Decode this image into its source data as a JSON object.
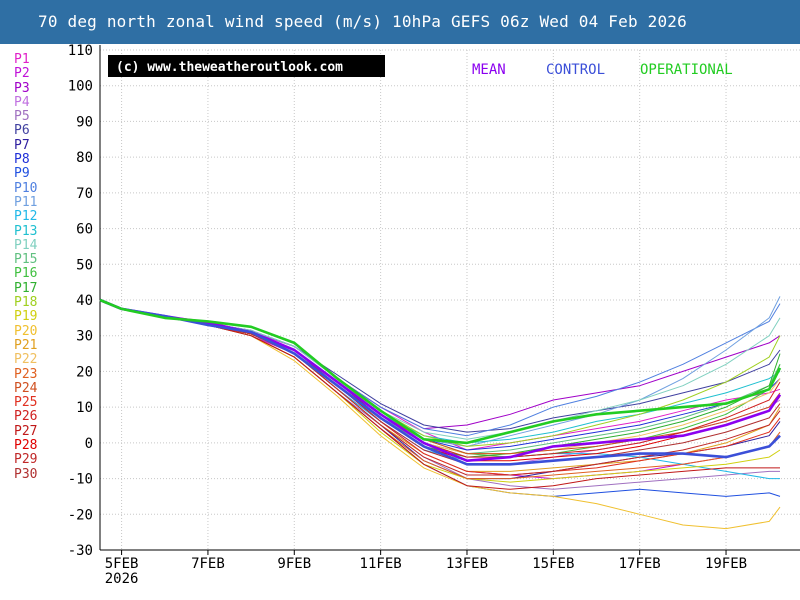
{
  "title": "70 deg north zonal wind speed (m/s) 10hPa GEFS 06z Wed 04 Feb 2026",
  "copyright": "(c) www.theweatheroutlook.com",
  "colors": {
    "title_bg": "#2f6fa4",
    "mean": "#8b00f0",
    "control": "#3b4fd8",
    "operational": "#22cc22"
  },
  "members": [
    {
      "label": "P1",
      "color": "#e020c8"
    },
    {
      "label": "P2",
      "color": "#c010d8"
    },
    {
      "label": "P3",
      "color": "#a000c8"
    },
    {
      "label": "P4",
      "color": "#c070e0"
    },
    {
      "label": "P5",
      "color": "#a070c0"
    },
    {
      "label": "P6",
      "color": "#4040a0"
    },
    {
      "label": "P7",
      "color": "#3020a0"
    },
    {
      "label": "P8",
      "color": "#2030d8"
    },
    {
      "label": "P9",
      "color": "#2050e0"
    },
    {
      "label": "P10",
      "color": "#5080e0"
    },
    {
      "label": "P11",
      "color": "#70a0e0"
    },
    {
      "label": "P12",
      "color": "#20b8e8"
    },
    {
      "label": "P13",
      "color": "#20c0d0"
    },
    {
      "label": "P14",
      "color": "#80d0c0"
    },
    {
      "label": "P15",
      "color": "#60c080"
    },
    {
      "label": "P16",
      "color": "#40c040"
    },
    {
      "label": "P17",
      "color": "#30b030"
    },
    {
      "label": "P18",
      "color": "#a0d020"
    },
    {
      "label": "P19",
      "color": "#d0d010"
    },
    {
      "label": "P20",
      "color": "#f0c030"
    },
    {
      "label": "P21",
      "color": "#e0a020"
    },
    {
      "label": "P22",
      "color": "#f0c060"
    },
    {
      "label": "P23",
      "color": "#e06020"
    },
    {
      "label": "P24",
      "color": "#d05020"
    },
    {
      "label": "P25",
      "color": "#e03020"
    },
    {
      "label": "P26",
      "color": "#d02020"
    },
    {
      "label": "P27",
      "color": "#c01818"
    },
    {
      "label": "P28",
      "color": "#e00000"
    },
    {
      "label": "P29",
      "color": "#c02828"
    },
    {
      "label": "P30",
      "color": "#b03030"
    }
  ],
  "chart_data": {
    "type": "line",
    "title": "70 deg north zonal wind speed (m/s) 10hPa GEFS 06z Wed 04 Feb 2026",
    "ylabel": "",
    "xlabel": "",
    "ylim": [
      -30,
      110
    ],
    "y_ticks": [
      110,
      100,
      90,
      80,
      70,
      60,
      50,
      40,
      30,
      20,
      10,
      0,
      -10,
      -20,
      -30
    ],
    "xlim": [
      "2026-02-04T12",
      "2026-02-20T06"
    ],
    "x_ticks": [
      {
        "date": "2026-02-05",
        "label": "5FEB",
        "sublabel": "2026"
      },
      {
        "date": "2026-02-07",
        "label": "7FEB",
        "sublabel": ""
      },
      {
        "date": "2026-02-09",
        "label": "9FEB",
        "sublabel": ""
      },
      {
        "date": "2026-02-11",
        "label": "11FEB",
        "sublabel": ""
      },
      {
        "date": "2026-02-13",
        "label": "13FEB",
        "sublabel": ""
      },
      {
        "date": "2026-02-15",
        "label": "15FEB",
        "sublabel": ""
      },
      {
        "date": "2026-02-17",
        "label": "17FEB",
        "sublabel": ""
      },
      {
        "date": "2026-02-19",
        "label": "19FEB",
        "sublabel": ""
      }
    ],
    "grid": true,
    "legend": {
      "placement": "top-right",
      "entries": [
        "MEAN",
        "CONTROL",
        "OPERATIONAL"
      ]
    },
    "x_dates": [
      "2026-02-04T12",
      "2026-02-05T00",
      "2026-02-06T00",
      "2026-02-07T00",
      "2026-02-08T00",
      "2026-02-09T00",
      "2026-02-10T00",
      "2026-02-11T00",
      "2026-02-12T00",
      "2026-02-13T00",
      "2026-02-14T00",
      "2026-02-15T00",
      "2026-02-16T00",
      "2026-02-17T00",
      "2026-02-18T00",
      "2026-02-19T00",
      "2026-02-20T00",
      "2026-02-20T06"
    ],
    "series": [
      {
        "name": "MEAN",
        "values": [
          40,
          37.5,
          35.5,
          33.5,
          31,
          26,
          17,
          8,
          0,
          -5,
          -4,
          -1,
          0,
          1,
          2,
          5,
          9,
          13.5
        ]
      },
      {
        "name": "CONTROL",
        "values": [
          40,
          37.5,
          35.5,
          33,
          31,
          25,
          16,
          7,
          -1,
          -6,
          -6,
          -5,
          -4,
          -3,
          -3,
          -4,
          -1,
          2
        ]
      },
      {
        "name": "OPERATIONAL",
        "values": [
          40,
          37.5,
          35,
          34,
          32.5,
          28,
          18,
          9,
          1,
          0,
          3,
          6,
          8,
          9,
          10,
          11,
          15,
          21
        ]
      },
      {
        "name": "P1",
        "values": [
          40,
          37.5,
          35.5,
          34,
          31,
          27,
          18,
          10,
          3,
          -2,
          0,
          2,
          4,
          6,
          9,
          12,
          14,
          15
        ]
      },
      {
        "name": "P2",
        "values": [
          40,
          37.5,
          35.5,
          33,
          30,
          25,
          15,
          6,
          -3,
          -8,
          -9,
          -10,
          -9,
          -8,
          -6,
          -4,
          -1,
          2
        ]
      },
      {
        "name": "P3",
        "values": [
          40,
          37.5,
          35.5,
          33.5,
          31.5,
          27,
          18,
          10,
          4,
          5,
          8,
          12,
          14,
          16,
          20,
          24,
          28,
          30
        ]
      },
      {
        "name": "P4",
        "values": [
          40,
          37.5,
          35,
          33.5,
          31,
          26,
          16,
          6,
          -2,
          -6,
          -6,
          -4,
          -2,
          0,
          3,
          6,
          10,
          12
        ]
      },
      {
        "name": "P5",
        "values": [
          40,
          37.5,
          35.5,
          33,
          30,
          24,
          14,
          5,
          -4,
          -10,
          -12,
          -13,
          -12,
          -11,
          -10,
          -9,
          -8,
          -8
        ]
      },
      {
        "name": "P6",
        "values": [
          40,
          37.5,
          35,
          33.5,
          31.5,
          27,
          19,
          11,
          5,
          3,
          4,
          7,
          9,
          11,
          14,
          17,
          22,
          26
        ]
      },
      {
        "name": "P7",
        "values": [
          40,
          37.5,
          35.5,
          33,
          30.5,
          25,
          15,
          5,
          -5,
          -10,
          -10,
          -8,
          -6,
          -4,
          -3,
          -1,
          2,
          6
        ]
      },
      {
        "name": "P8",
        "values": [
          40,
          37.5,
          35.5,
          33.5,
          31,
          26,
          17,
          8,
          1,
          -2,
          -1,
          1,
          3,
          5,
          8,
          11,
          15,
          18
        ]
      },
      {
        "name": "P9",
        "values": [
          40,
          37.5,
          35.5,
          33,
          30,
          24,
          14,
          4,
          -6,
          -12,
          -14,
          -15,
          -14,
          -13,
          -14,
          -15,
          -14,
          -15
        ]
      },
      {
        "name": "P10",
        "values": [
          40,
          37.5,
          35.5,
          33.5,
          31.5,
          27,
          18,
          10,
          4,
          2,
          5,
          10,
          13,
          17,
          22,
          28,
          34,
          39
        ]
      },
      {
        "name": "P11",
        "values": [
          40,
          37.5,
          35,
          33.5,
          31,
          26,
          16,
          7,
          1,
          -1,
          2,
          5,
          8,
          12,
          18,
          26,
          35,
          41
        ]
      },
      {
        "name": "P12",
        "values": [
          40,
          37.5,
          35.5,
          33,
          30.5,
          25,
          15,
          6,
          -2,
          -5,
          -4,
          -3,
          -3,
          -4,
          -6,
          -8,
          -10,
          -10
        ]
      },
      {
        "name": "P13",
        "values": [
          40,
          37.5,
          35.5,
          33.5,
          31,
          26,
          17,
          8,
          2,
          0,
          1,
          3,
          6,
          8,
          11,
          14,
          18,
          20
        ]
      },
      {
        "name": "P14",
        "values": [
          40,
          37.5,
          35.5,
          33.5,
          31.5,
          27,
          18,
          9,
          3,
          1,
          3,
          6,
          9,
          12,
          16,
          22,
          30,
          35
        ]
      },
      {
        "name": "P15",
        "values": [
          40,
          37.5,
          35.5,
          33,
          30.5,
          25,
          16,
          7,
          0,
          -3,
          -2,
          0,
          2,
          4,
          7,
          11,
          16,
          22
        ]
      },
      {
        "name": "P16",
        "values": [
          40,
          37.5,
          35.5,
          33.5,
          31,
          26,
          17,
          8,
          1,
          -3,
          -4,
          -3,
          -1,
          1,
          4,
          8,
          15,
          22
        ]
      },
      {
        "name": "P17",
        "values": [
          40,
          37.5,
          35.5,
          33,
          30.5,
          25,
          16,
          7,
          -1,
          -4,
          -3,
          -1,
          1,
          3,
          6,
          10,
          16,
          25
        ]
      },
      {
        "name": "P18",
        "values": [
          40,
          37.5,
          35.5,
          33.5,
          31,
          26,
          17,
          9,
          2,
          -1,
          0,
          2,
          5,
          8,
          12,
          17,
          24,
          30
        ]
      },
      {
        "name": "P19",
        "values": [
          40,
          37.5,
          35.5,
          33,
          30,
          24,
          14,
          3,
          -6,
          -10,
          -11,
          -10,
          -9,
          -8,
          -7,
          -6,
          -4,
          -2
        ]
      },
      {
        "name": "P20",
        "values": [
          40,
          37.5,
          35.5,
          33,
          30,
          23,
          13,
          2,
          -7,
          -12,
          -14,
          -15,
          -17,
          -20,
          -23,
          -24,
          -22,
          -18
        ]
      },
      {
        "name": "P21",
        "values": [
          40,
          37.5,
          35.5,
          33,
          30.5,
          25,
          15,
          5,
          -3,
          -8,
          -8,
          -7,
          -6,
          -5,
          -3,
          0,
          5,
          10
        ]
      },
      {
        "name": "P22",
        "values": [
          40,
          37.5,
          35.5,
          33.5,
          31,
          26,
          17,
          8,
          0,
          -3,
          -3,
          -2,
          0,
          2,
          5,
          9,
          14,
          18
        ]
      },
      {
        "name": "P23",
        "values": [
          40,
          37.5,
          35.5,
          33,
          30,
          24,
          14,
          4,
          -5,
          -10,
          -10,
          -9,
          -8,
          -7,
          -6,
          -4,
          -1,
          3
        ]
      },
      {
        "name": "P24",
        "values": [
          40,
          37.5,
          35.5,
          33.5,
          31,
          26,
          17,
          8,
          1,
          -3,
          -3,
          -2,
          -1,
          1,
          3,
          6,
          10,
          14
        ]
      },
      {
        "name": "P25",
        "values": [
          40,
          37.5,
          35.5,
          33,
          30.5,
          25,
          16,
          6,
          -3,
          -8,
          -9,
          -8,
          -7,
          -5,
          -3,
          -1,
          3,
          7
        ]
      },
      {
        "name": "P26",
        "values": [
          40,
          37.5,
          35.5,
          33.5,
          31,
          26,
          17,
          8,
          0,
          -4,
          -4,
          -3,
          -2,
          0,
          3,
          7,
          12,
          17
        ]
      },
      {
        "name": "P27",
        "values": [
          40,
          37.5,
          35.5,
          33,
          30,
          24,
          14,
          4,
          -6,
          -12,
          -13,
          -12,
          -10,
          -9,
          -8,
          -7,
          -7,
          -7
        ]
      },
      {
        "name": "P28",
        "values": [
          40,
          37.5,
          35.5,
          33.5,
          31,
          26,
          17,
          7,
          -1,
          -5,
          -5,
          -4,
          -3,
          -1,
          2,
          5,
          9,
          13
        ]
      },
      {
        "name": "P29",
        "values": [
          40,
          37.5,
          35.5,
          33,
          30.5,
          25,
          15,
          5,
          -4,
          -9,
          -9,
          -8,
          -6,
          -4,
          -2,
          1,
          5,
          9
        ]
      },
      {
        "name": "P30",
        "values": [
          40,
          37.5,
          35.5,
          33.5,
          31,
          26,
          16,
          6,
          -2,
          -6,
          -6,
          -5,
          -4,
          -2,
          0,
          3,
          7,
          11
        ]
      }
    ]
  }
}
